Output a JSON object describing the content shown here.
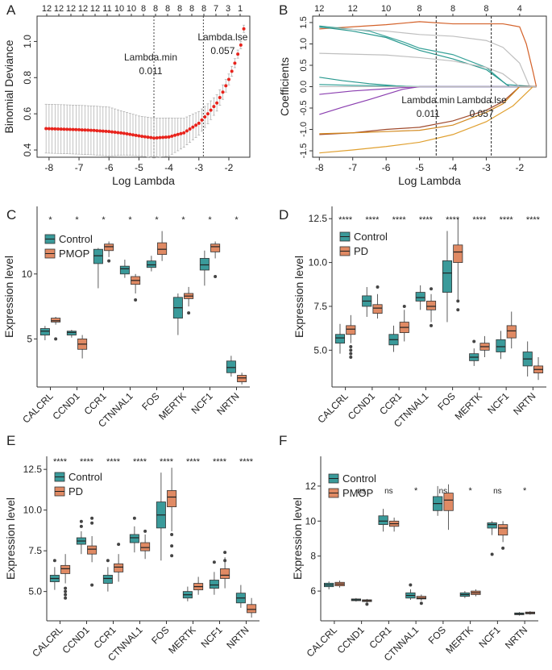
{
  "colors": {
    "control": "#3a9a9a",
    "case": "#e08a64",
    "lasso_point": "#e8231c",
    "lasso_bar": "#a9a9a9",
    "coef_colors": [
      "#d4622a",
      "#3aa39a",
      "#bfbfbf",
      "#27988e",
      "#8b3fb0",
      "#a04a2c",
      "#d38a20",
      "#e0a030"
    ]
  },
  "chart_data": [
    {
      "panel": "A",
      "type": "line",
      "xlabel": "Log Lambda",
      "ylabel": "Binomial Deviance",
      "xlim": [
        -8.4,
        -1.3
      ],
      "ylim": [
        0.36,
        1.14
      ],
      "xticks": [
        -8,
        -7,
        -6,
        -5,
        -4,
        -3,
        -2
      ],
      "yticks": [
        0.4,
        0.6,
        0.8,
        1.0
      ],
      "top_ticks": [
        "12",
        "12",
        "12",
        "12",
        "12",
        "11",
        "10",
        "10",
        "8",
        "8",
        "8",
        "8",
        "8",
        "8",
        "7",
        "3",
        "1"
      ],
      "annotations": [
        {
          "label": "Lambda.min",
          "value": "0.011",
          "x": -4.5
        },
        {
          "label": "Lambda.lse",
          "value": "0.057",
          "x": -2.85
        }
      ],
      "curve": {
        "x": [
          -8.1,
          -7.5,
          -7.0,
          -6.5,
          -6.0,
          -5.5,
          -5.0,
          -4.5,
          -4.0,
          -3.5,
          -3.0,
          -2.7,
          -2.4,
          -2.2,
          -2.0,
          -1.8,
          -1.6,
          -1.5
        ],
        "y": [
          0.518,
          0.515,
          0.512,
          0.508,
          0.502,
          0.492,
          0.478,
          0.466,
          0.472,
          0.495,
          0.548,
          0.6,
          0.66,
          0.72,
          0.79,
          0.88,
          0.98,
          1.07
        ],
        "err": [
          0.135,
          0.135,
          0.135,
          0.135,
          0.135,
          0.12,
          0.11,
          0.11,
          0.105,
          0.08,
          0.065,
          0.055,
          0.045,
          0.04,
          0.03,
          0.025,
          0.02,
          0.02
        ]
      }
    },
    {
      "panel": "B",
      "type": "line",
      "xlabel": "Log Lambda",
      "ylabel": "Coefficients",
      "xlim": [
        -8.2,
        -1.2
      ],
      "ylim": [
        -1.65,
        1.65
      ],
      "xticks": [
        -8,
        -7,
        -6,
        -5,
        -4,
        -3,
        -2
      ],
      "yticks": [
        -1.5,
        -1.0,
        -0.5,
        0.0,
        0.5,
        1.0,
        1.5
      ],
      "top_ticks_labels": [
        "12",
        "12",
        "10",
        "8",
        "8",
        "8",
        "4"
      ],
      "top_ticks_x": [
        -8,
        -7,
        -6,
        -5,
        -4,
        -3,
        -2
      ],
      "annotations": [
        {
          "label": "Lambda.min",
          "value": "0.011",
          "x": -4.5
        },
        {
          "label": "Lambda.lse",
          "value": "0.057",
          "x": -2.85
        }
      ],
      "paths": [
        {
          "color": "#d4622a",
          "x": [
            -8,
            -6,
            -5,
            -4,
            -3,
            -2.5,
            -2,
            -1.8,
            -1.6,
            -1.5
          ],
          "y": [
            1.35,
            1.45,
            1.52,
            1.47,
            1.47,
            1.47,
            1.4,
            1.0,
            0.35,
            0.0
          ]
        },
        {
          "color": "#3aa39a",
          "x": [
            -8,
            -6.5,
            -5.5,
            -5,
            -4,
            -3,
            -2.4
          ],
          "y": [
            1.42,
            1.3,
            1.05,
            0.9,
            0.75,
            0.45,
            0.05
          ]
        },
        {
          "color": "#bfbfbf",
          "x": [
            -8,
            -6,
            -5,
            -4,
            -3,
            -2.5,
            -2,
            -1.7
          ],
          "y": [
            1.38,
            1.3,
            1.22,
            1.18,
            1.08,
            0.92,
            0.55,
            0.0
          ]
        },
        {
          "color": "#27988e",
          "x": [
            -8,
            -7,
            -6,
            -5,
            -4,
            -3,
            -2.3
          ],
          "y": [
            1.4,
            1.3,
            1.15,
            0.85,
            0.65,
            0.4,
            0.0
          ]
        },
        {
          "color": "#bfbfbf",
          "x": [
            -8,
            -6,
            -5,
            -4,
            -3,
            -2.5,
            -2
          ],
          "y": [
            0.78,
            0.74,
            0.68,
            0.6,
            0.45,
            0.3,
            0.0
          ]
        },
        {
          "color": "#27988e",
          "x": [
            -8,
            -7.3,
            -6.5,
            -5.7,
            -5.2,
            -5
          ],
          "y": [
            0.22,
            0.14,
            0.07,
            0.02,
            0.0,
            0.0
          ]
        },
        {
          "color": "#3aa39a",
          "x": [
            -8,
            -7,
            -6,
            -5.5,
            -5
          ],
          "y": [
            0.05,
            0.03,
            0.02,
            0.01,
            0.0
          ]
        },
        {
          "color": "#8b3fb0",
          "x": [
            -8,
            -7.3,
            -6.5,
            -6,
            -5.5,
            -5
          ],
          "y": [
            -0.65,
            -0.48,
            -0.3,
            -0.18,
            -0.06,
            0.0
          ]
        },
        {
          "color": "#8b3fb0",
          "x": [
            -8,
            -7,
            -6,
            -5.5,
            -5
          ],
          "y": [
            -0.18,
            -0.1,
            -0.05,
            -0.02,
            0.0
          ]
        },
        {
          "color": "#a04a2c",
          "x": [
            -8,
            -7,
            -6,
            -5,
            -4,
            -3,
            -2.5,
            -2
          ],
          "y": [
            -1.12,
            -1.08,
            -1.0,
            -0.95,
            -0.8,
            -0.55,
            -0.35,
            0.0
          ]
        },
        {
          "color": "#d38a20",
          "x": [
            -8,
            -7,
            -6,
            -5,
            -4,
            -3,
            -2.5,
            -2
          ],
          "y": [
            -1.1,
            -1.08,
            -1.05,
            -1.02,
            -0.9,
            -0.6,
            -0.4,
            0.0
          ]
        },
        {
          "color": "#e0a030",
          "x": [
            -8,
            -7,
            -6,
            -5,
            -4,
            -3,
            -2.2,
            -1.8,
            -1.6
          ],
          "y": [
            -1.55,
            -1.48,
            -1.4,
            -1.3,
            -1.12,
            -0.82,
            -0.45,
            -0.15,
            0.0
          ]
        }
      ]
    },
    {
      "panel": "C",
      "type": "box",
      "ylabel": "Expression level",
      "legend": [
        "Control",
        "PMOP"
      ],
      "ylim": [
        1.3,
        15.2
      ],
      "yticks": [
        5,
        10
      ],
      "categories": [
        "CALCRL",
        "CCND1",
        "CCR1",
        "CTNNAL1",
        "FOS",
        "MERTK",
        "NCF1",
        "NRTN"
      ],
      "sig": [
        "*",
        "*",
        "*",
        "*",
        "*",
        "*",
        "*",
        "*"
      ],
      "control": [
        [
          4.9,
          5.3,
          5.6,
          5.8,
          6.0
        ],
        [
          5.1,
          5.3,
          5.5,
          5.6,
          5.7
        ],
        [
          8.9,
          10.8,
          11.4,
          11.9,
          12.0
        ],
        [
          9.7,
          10.0,
          10.4,
          10.6,
          11.1
        ],
        [
          10.2,
          10.5,
          10.7,
          11.0,
          11.4
        ],
        [
          5.3,
          6.6,
          7.4,
          8.2,
          8.5
        ],
        [
          9.1,
          10.3,
          10.7,
          11.2,
          11.8
        ],
        [
          2.1,
          2.4,
          2.8,
          3.3,
          3.7
        ]
      ],
      "case": [
        [
          6.1,
          6.3,
          6.4,
          6.6,
          6.7
        ],
        [
          3.5,
          4.2,
          4.6,
          5.0,
          5.3
        ],
        [
          11.3,
          11.8,
          12.1,
          12.3,
          12.5
        ],
        [
          8.5,
          9.2,
          9.5,
          9.8,
          10.0
        ],
        [
          11.0,
          11.5,
          11.9,
          12.4,
          13.3
        ],
        [
          7.5,
          8.1,
          8.3,
          8.5,
          9.0
        ],
        [
          11.2,
          11.7,
          12.1,
          12.3,
          12.5
        ],
        [
          1.5,
          1.7,
          2.0,
          2.2,
          2.4
        ]
      ],
      "control_out": [
        [],
        [],
        [],
        [],
        [],
        [],
        [],
        []
      ],
      "case_out": [
        [
          5.0
        ],
        [],
        [
          11.0
        ],
        [
          8.0
        ],
        [],
        [
          7.0
        ],
        [
          9.8
        ],
        []
      ]
    },
    {
      "panel": "D",
      "type": "box",
      "ylabel": "Expression level",
      "legend": [
        "Control",
        "PD"
      ],
      "ylim": [
        2.9,
        13.2
      ],
      "yticks": [
        5.0,
        7.5,
        10.0,
        12.5
      ],
      "categories": [
        "CALCRL",
        "CCND1",
        "CCR1",
        "CTNNAL1",
        "FOS",
        "MERTK",
        "NCF1",
        "NRTN"
      ],
      "sig": [
        "****",
        "****",
        "****",
        "****",
        "****",
        "****",
        "****",
        "****"
      ],
      "control": [
        [
          4.8,
          5.4,
          5.7,
          5.9,
          6.5
        ],
        [
          6.9,
          7.5,
          7.8,
          8.1,
          8.6
        ],
        [
          4.9,
          5.3,
          5.6,
          5.9,
          6.4
        ],
        [
          7.3,
          7.8,
          8.0,
          8.3,
          8.7
        ],
        [
          6.6,
          8.3,
          9.4,
          10.1,
          11.8
        ],
        [
          4.1,
          4.4,
          4.6,
          4.8,
          5.1
        ],
        [
          4.5,
          4.9,
          5.2,
          5.6,
          6.1
        ],
        [
          3.5,
          4.1,
          4.5,
          4.9,
          5.5
        ]
      ],
      "case": [
        [
          5.4,
          5.9,
          6.2,
          6.4,
          7.0
        ],
        [
          6.8,
          7.1,
          7.4,
          7.6,
          8.2
        ],
        [
          5.5,
          6.0,
          6.3,
          6.6,
          7.3
        ],
        [
          6.6,
          7.3,
          7.5,
          7.8,
          8.2
        ],
        [
          7.9,
          10.0,
          10.6,
          11.0,
          12.5
        ],
        [
          4.6,
          5.0,
          5.2,
          5.4,
          5.8
        ],
        [
          5.1,
          5.7,
          6.1,
          6.4,
          7.2
        ],
        [
          3.3,
          3.7,
          3.9,
          4.1,
          4.6
        ]
      ],
      "control_out": [
        [],
        [],
        [],
        [],
        [],
        [
          5.5
        ],
        [],
        []
      ],
      "case_out": [
        [
          4.6,
          4.8,
          5.0,
          5.2
        ],
        [
          8.6
        ],
        [
          7.5
        ],
        [
          6.4,
          8.5
        ],
        [
          7.3,
          7.8
        ],
        [],
        [],
        []
      ]
    },
    {
      "panel": "E",
      "type": "box",
      "ylabel": "Expression level",
      "legend": [
        "Control",
        "PD"
      ],
      "ylim": [
        3.2,
        13.3
      ],
      "yticks": [
        5.0,
        7.5,
        10.0,
        12.5
      ],
      "categories": [
        "CALCRL",
        "CCND1",
        "CCR1",
        "CTNNAL1",
        "FOS",
        "MERTK",
        "NCF1",
        "NRTN"
      ],
      "sig": [
        "****",
        "****",
        "****",
        "****",
        "****",
        "****",
        "****",
        "****"
      ],
      "control": [
        [
          5.1,
          5.6,
          5.8,
          6.0,
          6.5
        ],
        [
          7.3,
          7.9,
          8.1,
          8.3,
          8.7
        ],
        [
          5.0,
          5.5,
          5.8,
          6.0,
          6.5
        ],
        [
          7.4,
          8.0,
          8.3,
          8.5,
          9.0
        ],
        [
          6.9,
          8.9,
          9.7,
          10.5,
          12.3
        ],
        [
          4.4,
          4.6,
          4.8,
          5.0,
          5.3
        ],
        [
          4.8,
          5.2,
          5.4,
          5.7,
          6.2
        ],
        [
          4.0,
          4.3,
          4.6,
          4.9,
          5.4
        ]
      ],
      "case": [
        [
          5.5,
          6.1,
          6.4,
          6.6,
          7.3
        ],
        [
          6.8,
          7.3,
          7.6,
          7.8,
          8.4
        ],
        [
          5.6,
          6.2,
          6.5,
          6.7,
          7.3
        ],
        [
          7.0,
          7.5,
          7.7,
          8.0,
          8.5
        ],
        [
          8.7,
          10.2,
          10.8,
          11.2,
          12.6
        ],
        [
          4.8,
          5.1,
          5.3,
          5.5,
          5.9
        ],
        [
          5.2,
          5.8,
          6.0,
          6.4,
          7.1
        ],
        [
          3.4,
          3.7,
          3.9,
          4.2,
          4.6
        ]
      ],
      "control_out": [
        [
          6.9
        ],
        [
          9.0,
          9.3
        ],
        [
          6.9
        ],
        [
          9.5
        ],
        [],
        [],
        [
          6.8
        ],
        []
      ],
      "case_out": [
        [
          4.6,
          4.8,
          5.0,
          5.2
        ],
        [
          9.2,
          9.5,
          5.4
        ],
        [
          7.9
        ],
        [
          8.7
        ],
        [
          8.5,
          7.8,
          7.2
        ],
        [],
        [
          7.4,
          6.9
        ],
        []
      ]
    },
    {
      "panel": "F",
      "type": "box",
      "ylabel": "Expression level",
      "legend": [
        "Control",
        "PMOP"
      ],
      "ylim": [
        4.3,
        13.7
      ],
      "yticks": [
        6,
        8,
        10,
        12
      ],
      "categories": [
        "CALCRL",
        "CCND1",
        "CCR1",
        "CTNNAL1",
        "FOS",
        "MERTK",
        "NCF1",
        "NRTN"
      ],
      "sig": [
        "ns",
        "ns",
        "ns",
        "*",
        "ns",
        "*",
        "ns",
        "*"
      ],
      "control": [
        [
          6.1,
          6.25,
          6.35,
          6.45,
          6.55
        ],
        [
          5.4,
          5.45,
          5.5,
          5.55,
          5.6
        ],
        [
          9.4,
          9.8,
          10.0,
          10.3,
          10.7
        ],
        [
          5.5,
          5.6,
          5.75,
          5.9,
          6.1
        ],
        [
          10.3,
          10.6,
          11.0,
          11.4,
          12.0
        ],
        [
          5.6,
          5.7,
          5.8,
          5.9,
          6.0
        ],
        [
          9.2,
          9.6,
          9.8,
          9.9,
          10.0
        ],
        [
          4.6,
          4.65,
          4.7,
          4.75,
          4.8
        ]
      ],
      "case": [
        [
          6.2,
          6.3,
          6.4,
          6.5,
          6.6
        ],
        [
          5.35,
          5.4,
          5.45,
          5.5,
          5.55
        ],
        [
          9.4,
          9.7,
          9.85,
          10.0,
          10.2
        ],
        [
          5.45,
          5.55,
          5.6,
          5.7,
          5.8
        ],
        [
          9.5,
          10.6,
          11.2,
          11.6,
          12.1
        ],
        [
          5.7,
          5.8,
          5.9,
          6.0,
          6.1
        ],
        [
          8.8,
          9.2,
          9.6,
          9.8,
          10.0
        ],
        [
          4.65,
          4.7,
          4.75,
          4.8,
          4.85
        ]
      ],
      "control_out": [
        [],
        [],
        [],
        [
          6.35
        ],
        [],
        [],
        [
          8.1
        ],
        []
      ],
      "case_out": [
        [],
        [
          5.25
        ],
        [],
        [
          5.3
        ],
        [],
        [],
        [
          8.45
        ],
        []
      ]
    }
  ]
}
